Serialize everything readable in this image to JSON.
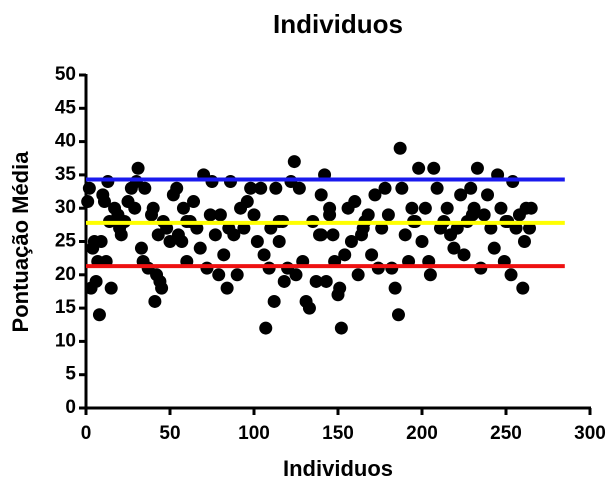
{
  "chart_data": {
    "type": "scatter",
    "title": "Individuos",
    "x_label": "Individuos",
    "y_label": "Pontuação Média",
    "xlim": [
      0,
      300
    ],
    "xticks": [
      0,
      50,
      100,
      150,
      200,
      250,
      300
    ],
    "ylim": [
      0,
      50
    ],
    "yticks": [
      0,
      5,
      10,
      15,
      20,
      25,
      30,
      35,
      40,
      45,
      50
    ],
    "color": "#000000",
    "x": [
      1,
      2,
      3,
      4,
      5,
      6,
      7,
      8,
      9,
      10,
      11,
      12,
      13,
      14,
      15,
      17,
      19,
      21,
      23,
      25,
      27,
      29,
      30,
      31,
      33,
      34,
      35,
      37,
      39,
      40,
      41,
      42,
      43,
      44,
      45,
      46,
      48,
      50,
      52,
      54,
      55,
      57,
      58,
      60,
      62,
      64,
      66,
      68,
      70,
      72,
      74,
      75,
      77,
      79,
      80,
      82,
      84,
      86,
      88,
      90,
      92,
      94,
      96,
      98,
      100,
      102,
      104,
      106,
      107,
      109,
      110,
      112,
      113,
      115,
      117,
      118,
      120,
      122,
      124,
      125,
      127,
      129,
      131,
      133,
      135,
      137,
      139,
      140,
      142,
      143,
      145,
      147,
      148,
      150,
      151,
      152,
      154,
      156,
      158,
      160,
      162,
      164,
      166,
      168,
      170,
      172,
      174,
      176,
      178,
      180,
      182,
      184,
      186,
      187,
      188,
      190,
      192,
      194,
      196,
      198,
      200,
      202,
      204,
      205,
      207,
      209,
      211,
      213,
      215,
      217,
      219,
      221,
      223,
      225,
      227,
      229,
      231,
      233,
      235,
      237,
      239,
      241,
      243,
      245,
      247,
      249,
      251,
      253,
      254,
      256,
      258,
      260,
      261,
      262,
      264,
      265,
      20,
      60,
      85,
      115,
      145,
      165,
      195,
      230,
      250,
      140
    ],
    "values": [
      31,
      33,
      18,
      24,
      25,
      19,
      22,
      14,
      25,
      32,
      31,
      22,
      34,
      28,
      18,
      30,
      29,
      26,
      28,
      31,
      33,
      30,
      34,
      36,
      24,
      22,
      33,
      21,
      29,
      30,
      16,
      20,
      26,
      19,
      18,
      28,
      27,
      25,
      32,
      33,
      26,
      25,
      30,
      22,
      28,
      31,
      27,
      24,
      35,
      21,
      29,
      34,
      26,
      20,
      29,
      23,
      18,
      34,
      26,
      20,
      30,
      27,
      31,
      33,
      29,
      25,
      33,
      23,
      12,
      21,
      27,
      16,
      33,
      25,
      28,
      19,
      21,
      34,
      37,
      20,
      33,
      22,
      16,
      15,
      28,
      19,
      26,
      32,
      35,
      19,
      30,
      26,
      22,
      17,
      18,
      12,
      23,
      30,
      25,
      31,
      20,
      26,
      28,
      29,
      23,
      32,
      21,
      27,
      33,
      29,
      21,
      18,
      14,
      39,
      33,
      26,
      22,
      30,
      28,
      36,
      25,
      30,
      22,
      20,
      36,
      33,
      27,
      28,
      30,
      26,
      24,
      27,
      32,
      23,
      28,
      33,
      30,
      36,
      21,
      29,
      32,
      27,
      24,
      35,
      30,
      22,
      28,
      20,
      34,
      27,
      29,
      18,
      25,
      30,
      27,
      30,
      27,
      28,
      27,
      28,
      29,
      27,
      28,
      29,
      28,
      26
    ],
    "lines": [
      {
        "value": 34.3,
        "x": [
          0,
          285
        ],
        "color": "#1a1aee"
      },
      {
        "value": 27.8,
        "x": [
          0,
          285
        ],
        "color": "#ffff00"
      },
      {
        "value": 21.3,
        "x": [
          0,
          285
        ],
        "color": "#ee1111"
      }
    ]
  }
}
